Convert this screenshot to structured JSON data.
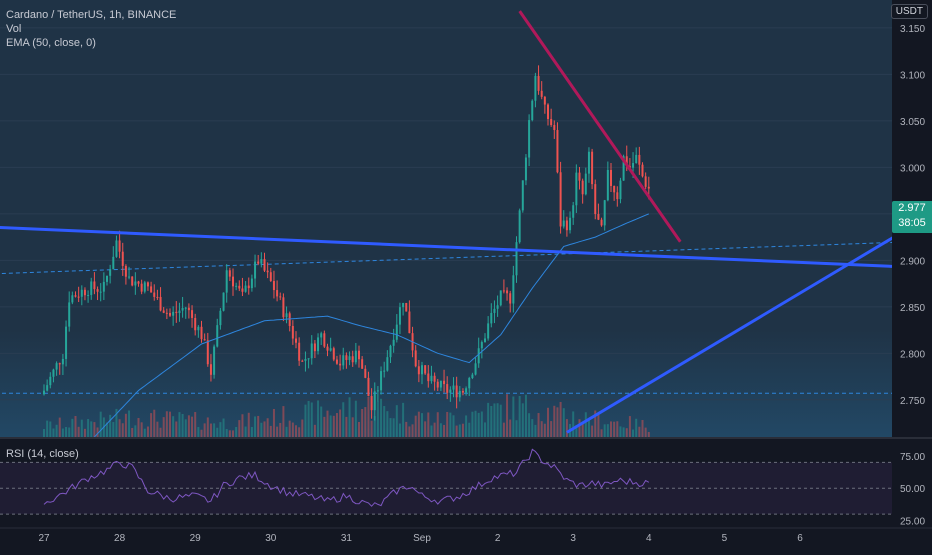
{
  "chart": {
    "symbol_legend": "Cardano / TetherUS, 1h, BINANCE",
    "volume_legend": "Vol",
    "ema_legend": "EMA (50, close, 0)",
    "rsi_legend": "RSI (14, close)",
    "currency": "USDT",
    "last_price": "2.977",
    "countdown": "38:05"
  },
  "colors": {
    "background": "#131722",
    "main_panel_bg": "#1f3346",
    "volume_panel_bg": "#224865",
    "rsi_band_bg": "#1f1d33",
    "candle_up": "#26a69a",
    "candle_down": "#ef5350",
    "ema_line": "#2e86de",
    "trendline": "#2f5bff",
    "resistance_line": "#b0195a",
    "rsi_line": "#7e57c2",
    "price_badge": "#1e9a85"
  },
  "chart_data": {
    "type": "candlestick",
    "price_axis": {
      "range": [
        2.71,
        3.18
      ],
      "ticks": [
        "3.150",
        "3.100",
        "3.050",
        "3.000",
        "2.950",
        "2.900",
        "2.850",
        "2.800",
        "2.750"
      ]
    },
    "rsi_axis": {
      "range": [
        20,
        85
      ],
      "ticks": [
        "75.00",
        "50.00",
        "25.00"
      ],
      "band": [
        30,
        70
      ]
    },
    "time_axis": {
      "ticks": [
        {
          "label": "27",
          "index": 0
        },
        {
          "label": "28",
          "index": 24
        },
        {
          "label": "29",
          "index": 48
        },
        {
          "label": "30",
          "index": 72
        },
        {
          "label": "31",
          "index": 96
        },
        {
          "label": "Sep",
          "index": 120
        },
        {
          "label": "2",
          "index": 144
        },
        {
          "label": "3",
          "index": 168
        },
        {
          "label": "4",
          "index": 192
        },
        {
          "label": "5",
          "index": 216
        },
        {
          "label": "6",
          "index": 240
        }
      ]
    },
    "candle_count": 193,
    "close_keyframes": [
      [
        0,
        2.76
      ],
      [
        6,
        2.8
      ],
      [
        8,
        2.86
      ],
      [
        14,
        2.87
      ],
      [
        19,
        2.87
      ],
      [
        23,
        2.92
      ],
      [
        27,
        2.88
      ],
      [
        33,
        2.87
      ],
      [
        40,
        2.84
      ],
      [
        45,
        2.85
      ],
      [
        50,
        2.82
      ],
      [
        53,
        2.78
      ],
      [
        58,
        2.89
      ],
      [
        63,
        2.86
      ],
      [
        68,
        2.9
      ],
      [
        73,
        2.87
      ],
      [
        78,
        2.83
      ],
      [
        82,
        2.79
      ],
      [
        88,
        2.82
      ],
      [
        94,
        2.79
      ],
      [
        100,
        2.8
      ],
      [
        104,
        2.74
      ],
      [
        110,
        2.81
      ],
      [
        114,
        2.86
      ],
      [
        118,
        2.79
      ],
      [
        122,
        2.77
      ],
      [
        128,
        2.76
      ],
      [
        133,
        2.76
      ],
      [
        138,
        2.8
      ],
      [
        142,
        2.84
      ],
      [
        145,
        2.86
      ],
      [
        148,
        2.86
      ],
      [
        151,
        2.95
      ],
      [
        154,
        3.05
      ],
      [
        156,
        3.1
      ],
      [
        159,
        3.06
      ],
      [
        162,
        3.04
      ],
      [
        164,
        2.94
      ],
      [
        167,
        2.94
      ],
      [
        169,
        2.99
      ],
      [
        171,
        2.97
      ],
      [
        173,
        3.01
      ],
      [
        175,
        2.95
      ],
      [
        177,
        2.93
      ],
      [
        179,
        2.99
      ],
      [
        182,
        2.97
      ],
      [
        184,
        3.01
      ],
      [
        186,
        3.0
      ],
      [
        188,
        3.01
      ],
      [
        190,
        2.99
      ],
      [
        192,
        2.977
      ]
    ],
    "volume_keyframes": [
      [
        0,
        0.2
      ],
      [
        28,
        0.35
      ],
      [
        60,
        0.25
      ],
      [
        104,
        0.55
      ],
      [
        125,
        0.3
      ],
      [
        150,
        0.55
      ],
      [
        170,
        0.35
      ],
      [
        192,
        0.2
      ]
    ],
    "ema_keyframes": [
      [
        16,
        2.71
      ],
      [
        30,
        2.76
      ],
      [
        50,
        2.81
      ],
      [
        70,
        2.835
      ],
      [
        90,
        2.84
      ],
      [
        100,
        2.83
      ],
      [
        112,
        2.82
      ],
      [
        125,
        2.8
      ],
      [
        135,
        2.79
      ],
      [
        145,
        2.82
      ],
      [
        155,
        2.87
      ],
      [
        165,
        2.915
      ],
      [
        175,
        2.925
      ],
      [
        185,
        2.94
      ],
      [
        192,
        2.95
      ]
    ],
    "rsi_keyframes": [
      [
        0,
        38
      ],
      [
        6,
        46
      ],
      [
        14,
        58
      ],
      [
        20,
        64
      ],
      [
        24,
        70
      ],
      [
        28,
        66
      ],
      [
        33,
        48
      ],
      [
        40,
        42
      ],
      [
        48,
        44
      ],
      [
        53,
        40
      ],
      [
        57,
        52
      ],
      [
        62,
        58
      ],
      [
        67,
        60
      ],
      [
        72,
        52
      ],
      [
        78,
        46
      ],
      [
        84,
        44
      ],
      [
        90,
        40
      ],
      [
        96,
        44
      ],
      [
        102,
        38
      ],
      [
        106,
        36
      ],
      [
        112,
        48
      ],
      [
        116,
        52
      ],
      [
        120,
        44
      ],
      [
        126,
        40
      ],
      [
        132,
        44
      ],
      [
        138,
        52
      ],
      [
        142,
        58
      ],
      [
        146,
        60
      ],
      [
        150,
        62
      ],
      [
        153,
        72
      ],
      [
        155,
        78
      ],
      [
        158,
        72
      ],
      [
        162,
        66
      ],
      [
        166,
        56
      ],
      [
        170,
        52
      ],
      [
        174,
        54
      ],
      [
        178,
        52
      ],
      [
        182,
        56
      ],
      [
        186,
        55
      ],
      [
        190,
        54
      ],
      [
        192,
        54
      ]
    ],
    "drawings": [
      {
        "name": "falling-resistance-trendline",
        "color": "#b0195a",
        "from": {
          "index": 151,
          "price": 3.168
        },
        "to": {
          "index": 202,
          "price": 2.92
        }
      },
      {
        "name": "descending-support-trendline",
        "color": "#2f5bff",
        "from": {
          "index": -80,
          "price": 2.945
        },
        "to": {
          "index": 293,
          "price": 2.89
        }
      },
      {
        "name": "ascending-trendline",
        "color": "#2f5bff",
        "from": {
          "index": 166,
          "price": 2.715
        },
        "to": {
          "index": 293,
          "price": 2.972
        }
      },
      {
        "name": "dashed-trendline",
        "color": "#2e86de",
        "from": {
          "index": -80,
          "price": 2.878
        },
        "to": {
          "index": 293,
          "price": 2.922
        }
      },
      {
        "name": "dashed-level-line",
        "color": "#2e86de",
        "from": {
          "index": -80,
          "price": 2.757
        },
        "to": {
          "index": 293,
          "price": 2.757
        }
      }
    ]
  }
}
